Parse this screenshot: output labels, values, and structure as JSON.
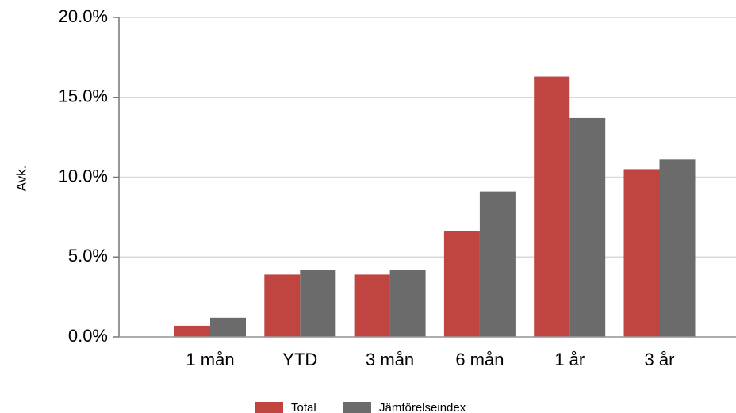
{
  "chart_data": {
    "type": "bar",
    "y_label": "Avk.",
    "categories": [
      "1 mån",
      "YTD",
      "3 mån",
      "6 mån",
      "1 år",
      "3 år"
    ],
    "series": [
      {
        "name": "Total",
        "color": "#c0443f",
        "values": [
          0.7,
          3.9,
          3.9,
          6.6,
          16.3,
          10.5
        ]
      },
      {
        "name": "Jämförelseindex",
        "color": "#6b6b6b",
        "values": [
          1.2,
          4.2,
          4.2,
          9.1,
          13.7,
          11.1
        ]
      }
    ],
    "ylim": [
      0,
      20
    ],
    "yticks": [
      {
        "value": 0,
        "label": "0.0%"
      },
      {
        "value": 5,
        "label": "5.0%"
      },
      {
        "value": 10,
        "label": "10.0%"
      },
      {
        "value": 15,
        "label": "15.0%"
      },
      {
        "value": 20,
        "label": "20.0%"
      }
    ],
    "grid": true
  }
}
